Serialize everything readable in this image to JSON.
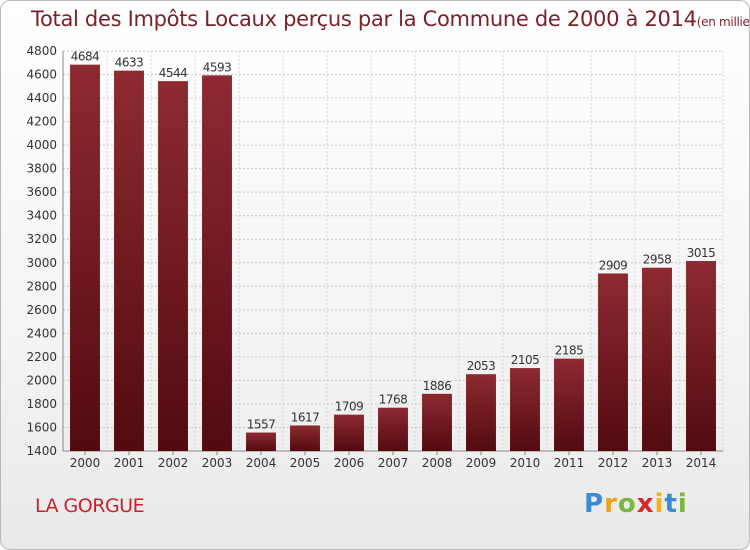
{
  "title": {
    "main": "Total des Impôts Locaux perçus par la Commune de 2000 à 2014",
    "unit": "(en milliers d'€)"
  },
  "commune": "LA GORGUE",
  "logo": {
    "text": "Proxiti",
    "letters": [
      "P",
      "r",
      "o",
      "x",
      "i",
      "t",
      "i"
    ]
  },
  "colors": {
    "bar": "#7b1b22",
    "bar_dark": "#5a0c12",
    "title": "#7a2228",
    "commune": "#c8232c"
  },
  "chart_data": {
    "type": "bar",
    "categories": [
      "2000",
      "2001",
      "2002",
      "2003",
      "2004",
      "2005",
      "2006",
      "2007",
      "2008",
      "2009",
      "2010",
      "2011",
      "2012",
      "2013",
      "2014"
    ],
    "values": [
      4684,
      4633,
      4544,
      4593,
      1557,
      1617,
      1709,
      1768,
      1886,
      2053,
      2105,
      2185,
      2909,
      2958,
      3015
    ],
    "ylim": [
      1400,
      4800
    ],
    "yticks": [
      1400,
      1600,
      1800,
      2000,
      2200,
      2400,
      2600,
      2800,
      3000,
      3200,
      3400,
      3600,
      3800,
      4000,
      4200,
      4400,
      4600,
      4800
    ],
    "grid": true,
    "title": "Total des Impôts Locaux perçus par la Commune de 2000 à 2014",
    "xlabel": "",
    "ylabel": ""
  }
}
